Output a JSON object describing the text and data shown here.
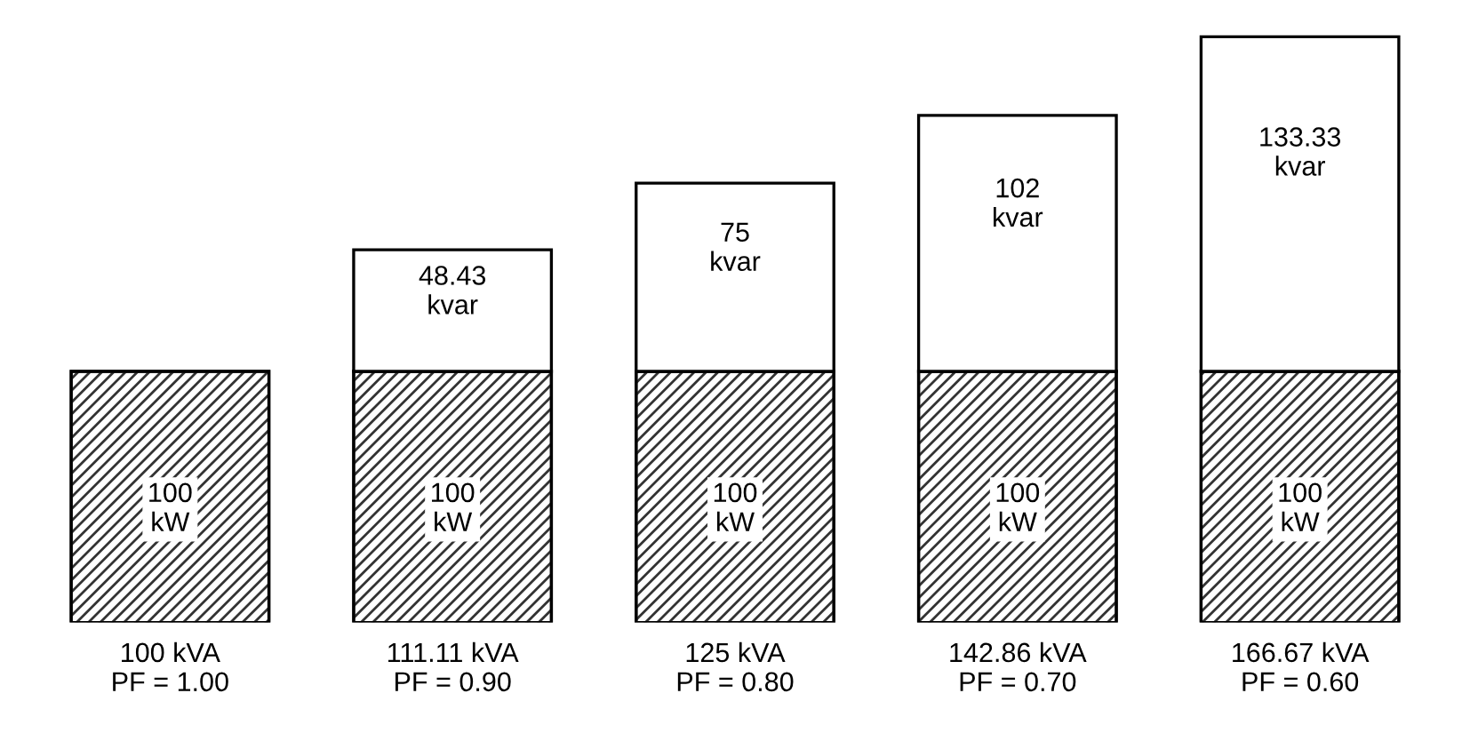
{
  "chart_data": {
    "type": "bar",
    "stacked": true,
    "categories": [
      "100 kVA\nPF = 1.00",
      "111.11 kVA\nPF = 0.90",
      "125 kVA\nPF = 0.80",
      "142.86 kVA\nPF = 0.70",
      "166.67 kVA\nPF = 0.60"
    ],
    "series": [
      {
        "color": "#333333",
        "values": [
          100,
          100,
          100,
          100,
          100
        ],
        "value_labels": [
          "100\nkW",
          "100\nkW",
          "100\nkW",
          "100\nkW",
          "100\nkW"
        ]
      },
      {
        "color": "#ffffff",
        "values": [
          null,
          48.43,
          75,
          102,
          133.33
        ],
        "value_labels": [
          null,
          "48.43\nkvar",
          "75\nkvar",
          "102\nkvar",
          "133.33\nkvar"
        ]
      }
    ]
  }
}
